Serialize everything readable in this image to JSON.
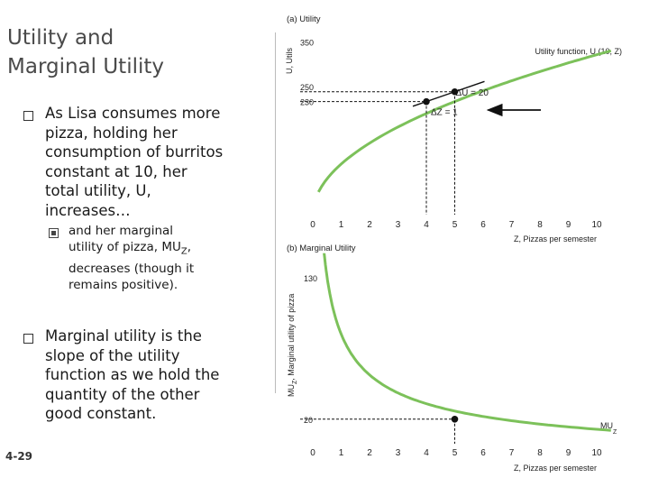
{
  "slide": {
    "title_line1": "Utility and",
    "title_line2": "Marginal Utility",
    "bullet1_lines": [
      "As Lisa consumes more",
      "pizza, holding her",
      "consumption of burritos",
      "constant at 10, her",
      "total utility, U,",
      "increases…"
    ],
    "sub_bullet_lines": [
      "and her marginal",
      "utility of pizza, MU",
      "Z",
      ",",
      "decreases (though it",
      "remains positive)."
    ],
    "bullet2_lines": [
      "Marginal utility is the",
      "slope of the utility",
      "function as we hold the",
      "quantity of the other",
      "good constant."
    ],
    "slide_number": "4-29"
  },
  "chart_data": [
    {
      "type": "line",
      "title": "(a) Utility",
      "ylabel": "U, Utils",
      "xlabel": "Z, Pizzas per semester",
      "x_ticks": [
        "0",
        "1",
        "2",
        "3",
        "4",
        "5",
        "6",
        "7",
        "8",
        "9",
        "10"
      ],
      "y_ticks": [
        "230",
        "250",
        "350"
      ],
      "xlim": [
        0,
        10
      ],
      "ylim": [
        0,
        350
      ],
      "series": [
        {
          "name": "Utility function, U (10, Z)",
          "color": "#7cc15a",
          "x_start": 0.2,
          "x_end": 10.5,
          "coef": 102.9,
          "exponent": 0.5
        }
      ],
      "highlight_points": [
        {
          "x": 4,
          "y": 230
        },
        {
          "x": 5,
          "y": 250
        }
      ],
      "annotations": {
        "delta_u": "ΔU = 20",
        "delta_z": "ΔZ = 1"
      },
      "grid": false
    },
    {
      "type": "line",
      "title": "(b) Marginal Utility",
      "ylabel": "MU",
      "ylabel_sub": "Z",
      "ylabel_rest": ", Marginal utility of pizza",
      "xlabel": "Z, Pizzas per semester",
      "x_ticks": [
        "0",
        "1",
        "2",
        "3",
        "4",
        "5",
        "6",
        "7",
        "8",
        "9",
        "10"
      ],
      "y_ticks": [
        "20",
        "130"
      ],
      "xlim": [
        0,
        10
      ],
      "ylim": [
        0,
        130
      ],
      "series": [
        {
          "name": "MU",
          "name_sub": "Z",
          "color": "#7cc15a",
          "x_start": 0.4,
          "x_end": 10.5,
          "coef": 51.45,
          "exponent": -0.5
        }
      ],
      "highlight_points": [
        {
          "x": 5,
          "y": 20
        }
      ],
      "grid": false
    }
  ]
}
